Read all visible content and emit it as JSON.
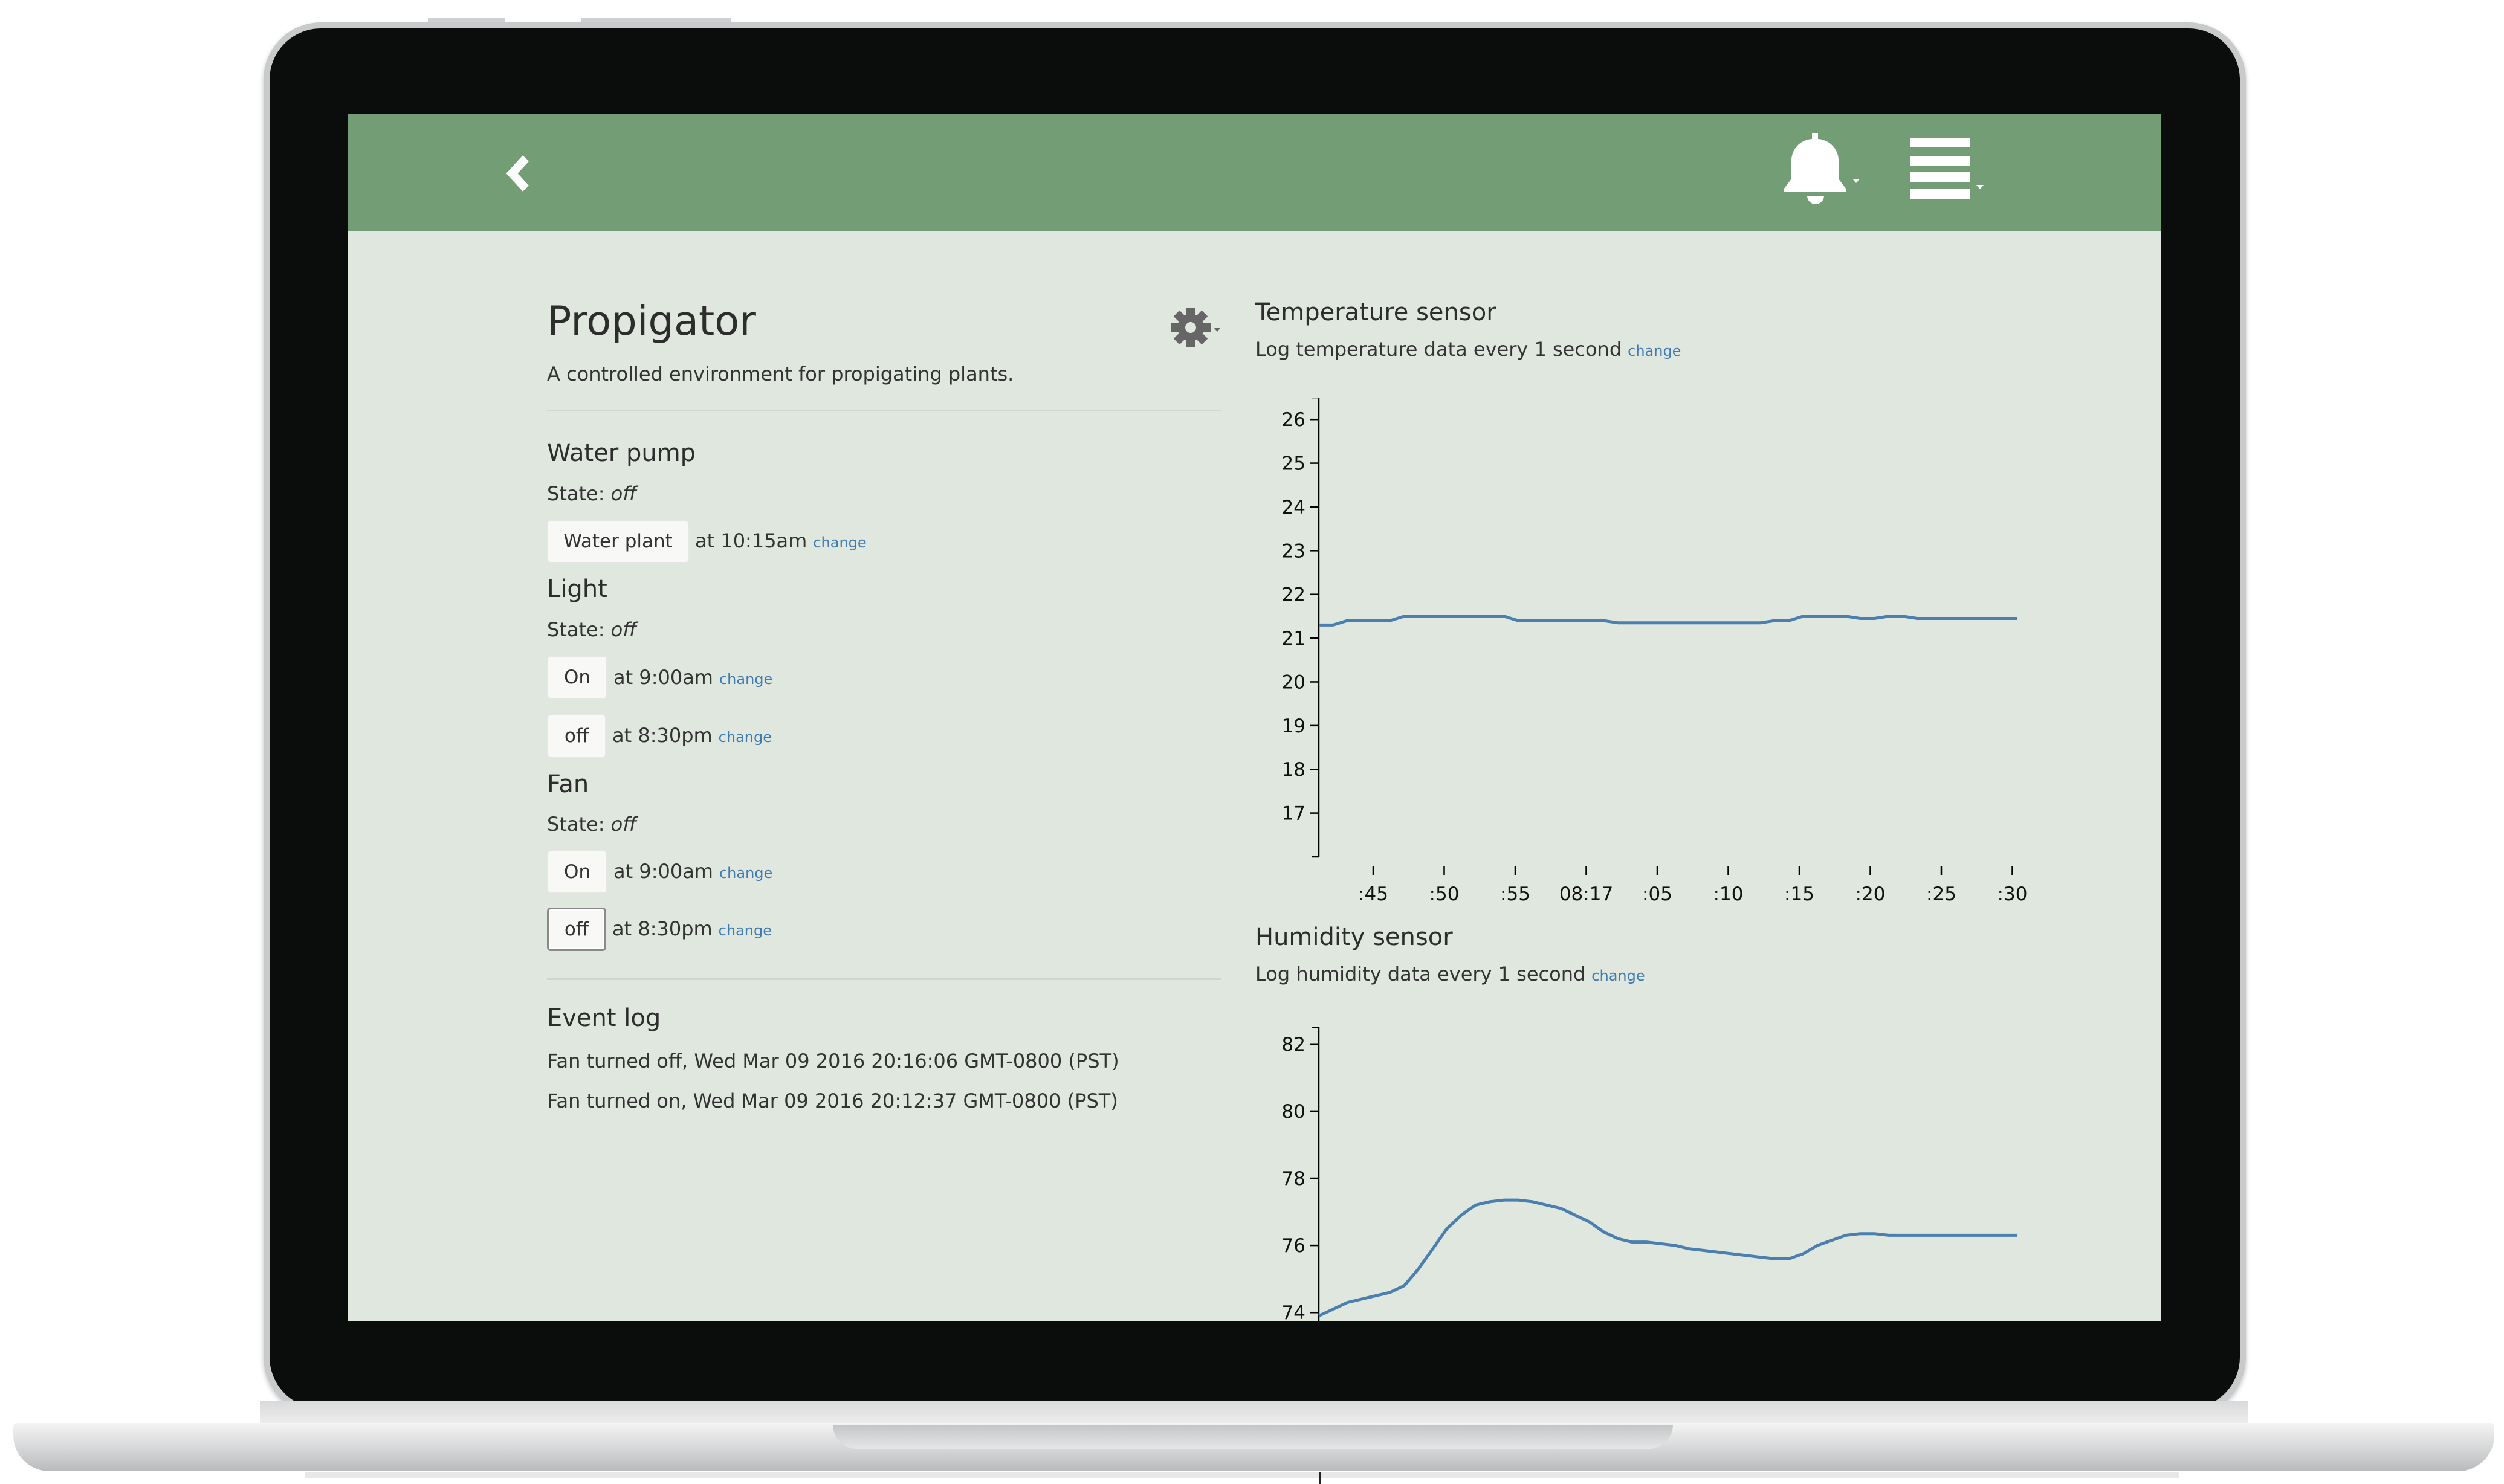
{
  "device": {
    "title": "Propigator",
    "description": "A controlled environment for propigating plants."
  },
  "sections": {
    "water_pump": {
      "title": "Water pump",
      "state_label": "State:",
      "state_value": "off",
      "buttons": [
        {
          "label": "Water plant",
          "time": "at 10:15am",
          "change": "change"
        }
      ]
    },
    "light": {
      "title": "Light",
      "state_label": "State:",
      "state_value": "off",
      "buttons": [
        {
          "label": "On",
          "time": "at 9:00am",
          "change": "change"
        },
        {
          "label": "off",
          "time": "at 8:30pm",
          "change": "change"
        }
      ]
    },
    "fan": {
      "title": "Fan",
      "state_label": "State:",
      "state_value": "off",
      "buttons": [
        {
          "label": "On",
          "time": "at 9:00am",
          "change": "change"
        },
        {
          "label": "off",
          "time": "at 8:30pm",
          "change": "change"
        }
      ]
    }
  },
  "event_log": {
    "title": "Event log",
    "entries": [
      "Fan turned off, Wed Mar 09 2016 20:16:06 GMT-0800 (PST)",
      "Fan turned on, Wed Mar 09 2016 20:12:37 GMT-0800 (PST)"
    ]
  },
  "temperature": {
    "title": "Temperature sensor",
    "subtitle": "Log temperature data every 1 second",
    "change": "change"
  },
  "humidity": {
    "title": "Humidity sensor",
    "subtitle": "Log humidity data every 1 second",
    "change": "change"
  },
  "colors": {
    "header": "#739d74",
    "background": "#dfe7de",
    "line": "#4a7fb0",
    "link": "#3d7bb2"
  },
  "icons": [
    "back-chevron-icon",
    "bell-icon",
    "menu-icon",
    "gear-icon"
  ],
  "chart_data": [
    {
      "type": "line",
      "title": "Temperature sensor",
      "ylim": [
        16,
        26.5
      ],
      "y_ticks": [
        17,
        18,
        19,
        20,
        21,
        22,
        23,
        24,
        25,
        26
      ],
      "x_tick_labels": [
        ":45",
        ":50",
        ":55",
        "08:17",
        ":05",
        ":10",
        ":15",
        ":20",
        ":25",
        ":30"
      ],
      "x": [
        0,
        1,
        2,
        3,
        4,
        5,
        6,
        7,
        8,
        9,
        10,
        11,
        12,
        13,
        14,
        15,
        16,
        17,
        18,
        19,
        20,
        21,
        22,
        23,
        24,
        25,
        26,
        27,
        28,
        29,
        30,
        31,
        32,
        33,
        34,
        35,
        36,
        37,
        38,
        39,
        40,
        41,
        42,
        43,
        44,
        45,
        46,
        47,
        48,
        49
      ],
      "values": [
        21.3,
        21.3,
        21.4,
        21.4,
        21.4,
        21.4,
        21.5,
        21.5,
        21.5,
        21.5,
        21.5,
        21.5,
        21.5,
        21.5,
        21.4,
        21.4,
        21.4,
        21.4,
        21.4,
        21.4,
        21.4,
        21.35,
        21.35,
        21.35,
        21.35,
        21.35,
        21.35,
        21.35,
        21.35,
        21.35,
        21.35,
        21.35,
        21.4,
        21.4,
        21.5,
        21.5,
        21.5,
        21.5,
        21.45,
        21.45,
        21.5,
        21.5,
        21.45,
        21.45,
        21.45,
        21.45,
        21.45,
        21.45,
        21.45,
        21.45
      ]
    },
    {
      "type": "line",
      "title": "Humidity sensor",
      "ylim": [
        73.5,
        82.5
      ],
      "y_ticks": [
        74,
        76,
        78,
        80,
        82
      ],
      "x": [
        0,
        1,
        2,
        3,
        4,
        5,
        6,
        7,
        8,
        9,
        10,
        11,
        12,
        13,
        14,
        15,
        16,
        17,
        18,
        19,
        20,
        21,
        22,
        23,
        24,
        25,
        26,
        27,
        28,
        29,
        30,
        31,
        32,
        33,
        34,
        35,
        36,
        37,
        38,
        39,
        40,
        41,
        42,
        43,
        44,
        45,
        46,
        47,
        48,
        49
      ],
      "values": [
        73.9,
        74.1,
        74.3,
        74.4,
        74.5,
        74.6,
        74.8,
        75.3,
        75.9,
        76.5,
        76.9,
        77.2,
        77.3,
        77.35,
        77.35,
        77.3,
        77.2,
        77.1,
        76.9,
        76.7,
        76.4,
        76.2,
        76.1,
        76.1,
        76.05,
        76.0,
        75.9,
        75.85,
        75.8,
        75.75,
        75.7,
        75.65,
        75.6,
        75.6,
        75.75,
        76.0,
        76.15,
        76.3,
        76.35,
        76.35,
        76.3,
        76.3,
        76.3,
        76.3,
        76.3,
        76.3,
        76.3,
        76.3,
        76.3,
        76.3
      ]
    }
  ]
}
